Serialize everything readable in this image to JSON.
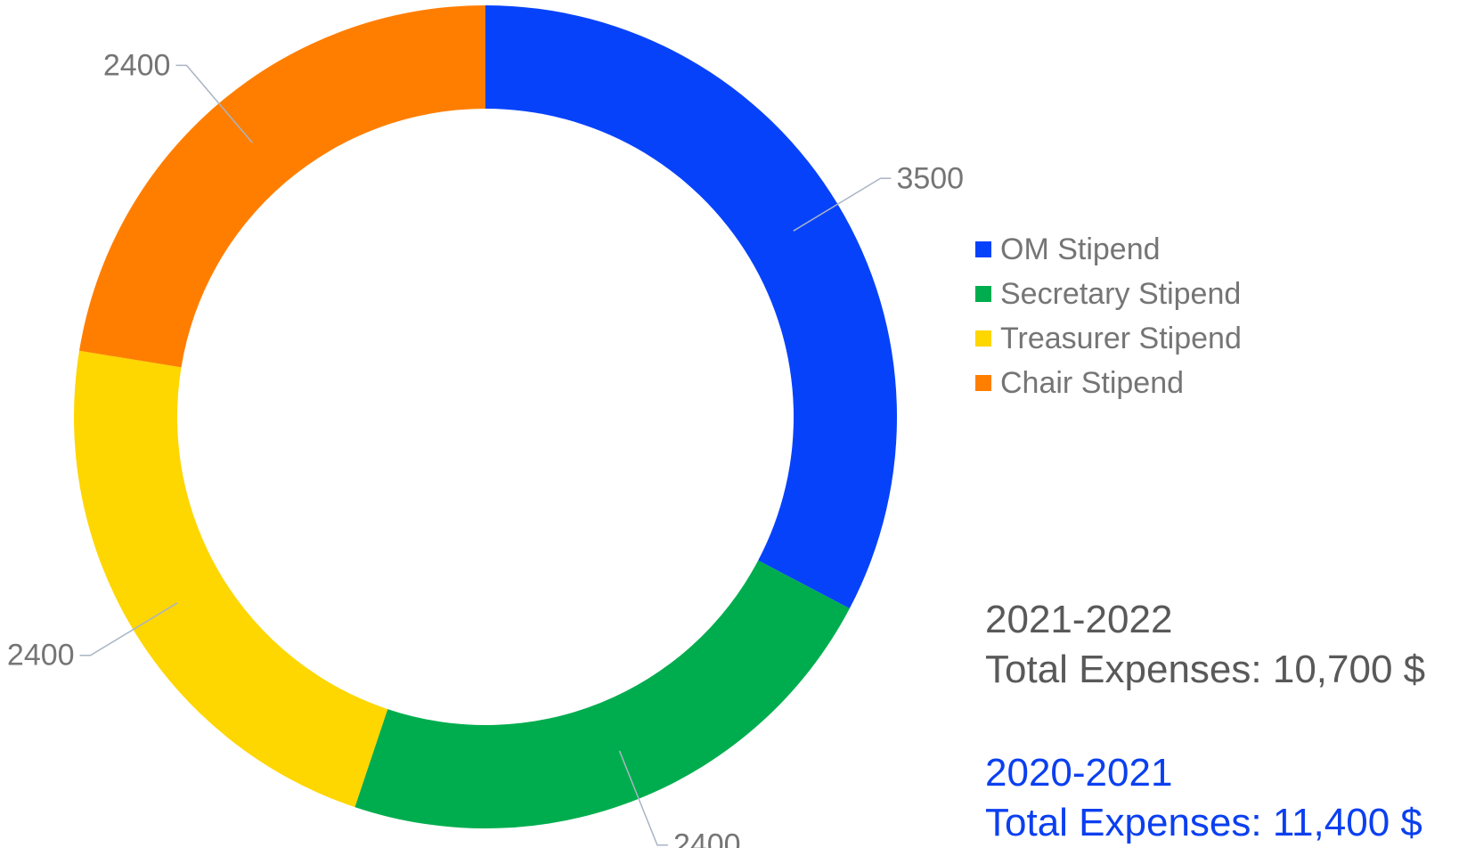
{
  "chart_data": {
    "type": "pie",
    "variant": "donut",
    "start_angle_deg": 0,
    "direction": "clockwise",
    "series": [
      {
        "name": "OM Stipend",
        "value": 3500,
        "color": "#0742fb"
      },
      {
        "name": "Secretary Stipend",
        "value": 2400,
        "color": "#00ad4e"
      },
      {
        "name": "Treasurer Stipend",
        "value": 2400,
        "color": "#fed600"
      },
      {
        "name": "Chair Stipend",
        "value": 2400,
        "color": "#ff7e00"
      }
    ],
    "data_labels": [
      "3500",
      "2400",
      "2400",
      "2400"
    ],
    "legend_position": "right"
  },
  "totals": {
    "current_period": "2021-2022",
    "current_total": "Total Expenses: 10,700 $",
    "previous_period": "2020-2021",
    "previous_total": "Total Expenses: 11,400 $",
    "previous_color": "#0b3ff0"
  }
}
